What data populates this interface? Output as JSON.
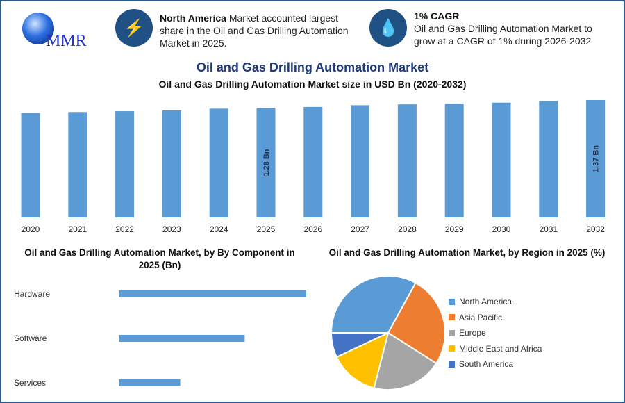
{
  "header": {
    "logo_text": "MMR",
    "info1": {
      "bold": "North America",
      "text": " Market accounted largest share in the Oil and Gas Drilling Automation Market in 2025.",
      "icon": "lightning-icon"
    },
    "info2": {
      "bold": "1% CAGR",
      "text": "Oil and Gas Drilling Automation Market to grow at a CAGR of 1% during 2026-2032",
      "icon": "oil-drop-icon"
    }
  },
  "title": "Oil and Gas Drilling Automation Market",
  "chart_data": [
    {
      "type": "bar",
      "title": "Oil and Gas Drilling Automation Market size in USD Bn (2020-2032)",
      "categories": [
        "2020",
        "2021",
        "2022",
        "2023",
        "2024",
        "2025",
        "2026",
        "2027",
        "2028",
        "2029",
        "2030",
        "2031",
        "2032"
      ],
      "values": [
        1.22,
        1.23,
        1.24,
        1.25,
        1.27,
        1.28,
        1.29,
        1.31,
        1.32,
        1.33,
        1.34,
        1.36,
        1.37
      ],
      "data_labels": {
        "2025": "1.28 Bn",
        "2032": "1.37 Bn"
      },
      "color": "#5b9bd5",
      "ylim": [
        0,
        1.4
      ],
      "grid": false
    },
    {
      "type": "bar",
      "orientation": "horizontal",
      "title": "Oil and Gas Drilling Automation Market, by By Component in 2025 (Bn)",
      "categories": [
        "Hardware",
        "Software",
        "Services"
      ],
      "values": [
        0.64,
        0.43,
        0.21
      ],
      "color": "#5b9bd5",
      "grid": false
    },
    {
      "type": "pie",
      "title": "Oil and Gas Drilling Automation Market, by Region in 2025 (%)",
      "categories": [
        "North America",
        "Asia Pacific",
        "Europe",
        "Middle East and Africa",
        "South America"
      ],
      "values": [
        33,
        26,
        20,
        14,
        7
      ],
      "colors": [
        "#5b9bd5",
        "#ed7d31",
        "#a5a5a5",
        "#ffc000",
        "#4472c4"
      ],
      "legend": "right"
    }
  ]
}
